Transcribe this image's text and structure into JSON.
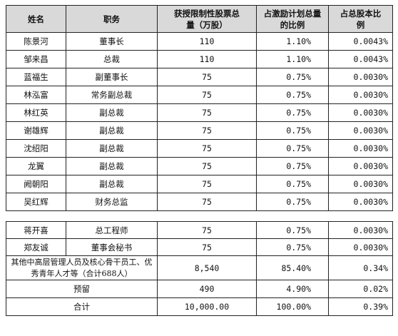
{
  "headers": {
    "name": "姓名",
    "role": "职务",
    "shares": "获授限制性股票总量（万股）",
    "plan_ratio": "占激励计划总量的比例",
    "equity_ratio": "占总股本比例"
  },
  "rows": [
    {
      "name": "陈景河",
      "role": "董事长",
      "shares": "110",
      "plan_ratio": "1.10%",
      "equity_ratio": "0.0043%"
    },
    {
      "name": "邹来昌",
      "role": "总裁",
      "shares": "110",
      "plan_ratio": "1.10%",
      "equity_ratio": "0.0043%"
    },
    {
      "name": "蓝福生",
      "role": "副董事长",
      "shares": "75",
      "plan_ratio": "0.75%",
      "equity_ratio": "0.0030%"
    },
    {
      "name": "林泓富",
      "role": "常务副总裁",
      "shares": "75",
      "plan_ratio": "0.75%",
      "equity_ratio": "0.0030%"
    },
    {
      "name": "林红英",
      "role": "副总裁",
      "shares": "75",
      "plan_ratio": "0.75%",
      "equity_ratio": "0.0030%"
    },
    {
      "name": "谢雄辉",
      "role": "副总裁",
      "shares": "75",
      "plan_ratio": "0.75%",
      "equity_ratio": "0.0030%"
    },
    {
      "name": "沈绍阳",
      "role": "副总裁",
      "shares": "75",
      "plan_ratio": "0.75%",
      "equity_ratio": "0.0030%"
    },
    {
      "name": "龙翼",
      "role": "副总裁",
      "shares": "75",
      "plan_ratio": "0.75%",
      "equity_ratio": "0.0030%"
    },
    {
      "name": "阙朝阳",
      "role": "副总裁",
      "shares": "75",
      "plan_ratio": "0.75%",
      "equity_ratio": "0.0030%"
    },
    {
      "name": "吴红辉",
      "role": "财务总监",
      "shares": "75",
      "plan_ratio": "0.75%",
      "equity_ratio": "0.0030%"
    }
  ],
  "rows2": [
    {
      "name": "蒋开喜",
      "role": "总工程师",
      "shares": "75",
      "plan_ratio": "0.75%",
      "equity_ratio": "0.0030%"
    },
    {
      "name": "郑友诚",
      "role": "董事会秘书",
      "shares": "75",
      "plan_ratio": "0.75%",
      "equity_ratio": "0.0030%"
    }
  ],
  "others": {
    "label": "其他中高层管理人员及核心骨干员工、优秀青年人才等（合计688人）",
    "shares": "8,540",
    "plan_ratio": "85.40%",
    "equity_ratio": "0.34%"
  },
  "reserved": {
    "label": "预留",
    "shares": "490",
    "plan_ratio": "4.90%",
    "equity_ratio": "0.02%"
  },
  "total": {
    "label": "合计",
    "shares": "10,000.00",
    "plan_ratio": "100.00%",
    "equity_ratio": "0.39%"
  }
}
